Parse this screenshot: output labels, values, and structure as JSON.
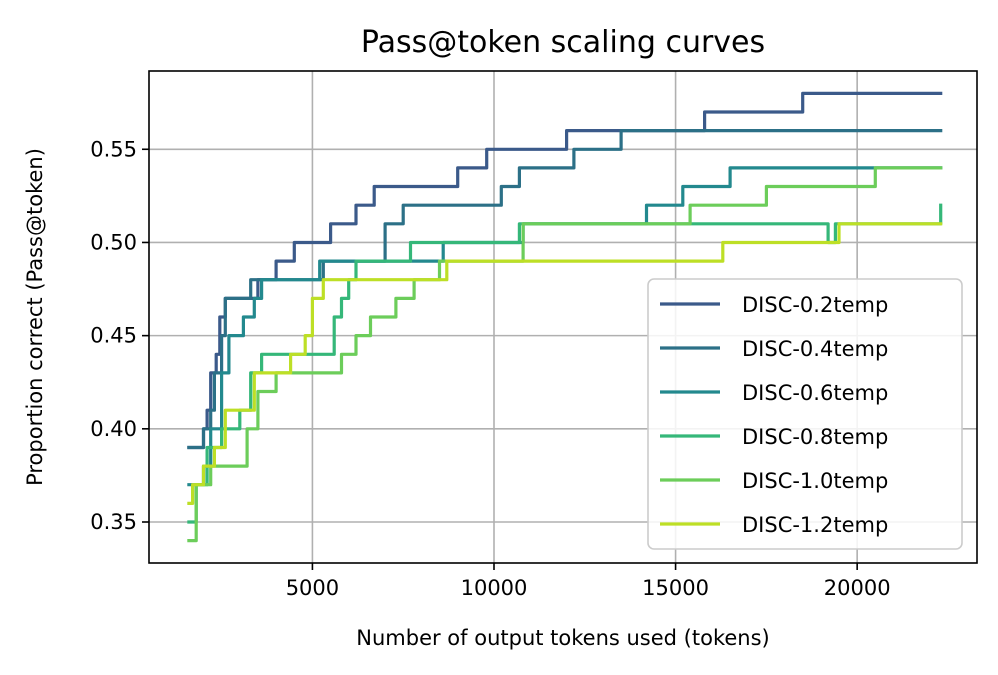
{
  "chart_data": {
    "type": "line",
    "title": "Pass@token scaling curves",
    "xlabel": "Number of output tokens used (tokens)",
    "ylabel": "Proportion correct (Pass@token)",
    "xlim": [
      500,
      23300
    ],
    "ylim": [
      0.328,
      0.592
    ],
    "xticks": [
      5000,
      10000,
      15000,
      20000
    ],
    "xtick_labels": [
      "5000",
      "10000",
      "15000",
      "20000"
    ],
    "yticks": [
      0.35,
      0.4,
      0.45,
      0.5,
      0.55
    ],
    "ytick_labels": [
      "0.35",
      "0.40",
      "0.45",
      "0.50",
      "0.55"
    ],
    "grid": true,
    "legend_position": "bottom-right",
    "step": true,
    "series": [
      {
        "name": "DISC-0.2temp",
        "color": "#3b5a8a",
        "points": [
          [
            1600,
            0.39
          ],
          [
            2000,
            0.4
          ],
          [
            2100,
            0.41
          ],
          [
            2200,
            0.43
          ],
          [
            2350,
            0.44
          ],
          [
            2450,
            0.46
          ],
          [
            2600,
            0.47
          ],
          [
            3500,
            0.48
          ],
          [
            4000,
            0.49
          ],
          [
            4500,
            0.5
          ],
          [
            5200,
            0.5
          ],
          [
            5500,
            0.51
          ],
          [
            6200,
            0.52
          ],
          [
            6500,
            0.52
          ],
          [
            6700,
            0.53
          ],
          [
            8200,
            0.53
          ],
          [
            9000,
            0.54
          ],
          [
            9800,
            0.55
          ],
          [
            11800,
            0.55
          ],
          [
            12000,
            0.56
          ],
          [
            15000,
            0.56
          ],
          [
            15800,
            0.57
          ],
          [
            17500,
            0.57
          ],
          [
            18500,
            0.58
          ],
          [
            22300,
            0.58
          ]
        ]
      },
      {
        "name": "DISC-0.4temp",
        "color": "#2c7087",
        "points": [
          [
            1600,
            0.39
          ],
          [
            1900,
            0.39
          ],
          [
            2000,
            0.4
          ],
          [
            2200,
            0.41
          ],
          [
            2300,
            0.43
          ],
          [
            2500,
            0.45
          ],
          [
            2600,
            0.47
          ],
          [
            3000,
            0.47
          ],
          [
            3300,
            0.48
          ],
          [
            4000,
            0.48
          ],
          [
            4300,
            0.48
          ],
          [
            5000,
            0.48
          ],
          [
            5300,
            0.49
          ],
          [
            6800,
            0.49
          ],
          [
            7000,
            0.51
          ],
          [
            7500,
            0.52
          ],
          [
            9800,
            0.52
          ],
          [
            10200,
            0.53
          ],
          [
            10700,
            0.54
          ],
          [
            11800,
            0.54
          ],
          [
            12200,
            0.55
          ],
          [
            13500,
            0.56
          ],
          [
            22300,
            0.56
          ]
        ]
      },
      {
        "name": "DISC-0.6temp",
        "color": "#23898e",
        "points": [
          [
            1600,
            0.37
          ],
          [
            2000,
            0.38
          ],
          [
            2200,
            0.4
          ],
          [
            2500,
            0.43
          ],
          [
            2700,
            0.45
          ],
          [
            3100,
            0.46
          ],
          [
            3400,
            0.47
          ],
          [
            3600,
            0.48
          ],
          [
            4300,
            0.48
          ],
          [
            5000,
            0.48
          ],
          [
            5200,
            0.49
          ],
          [
            7200,
            0.49
          ],
          [
            8600,
            0.5
          ],
          [
            10600,
            0.5
          ],
          [
            10800,
            0.51
          ],
          [
            13500,
            0.51
          ],
          [
            14200,
            0.52
          ],
          [
            15200,
            0.53
          ],
          [
            16000,
            0.53
          ],
          [
            16500,
            0.54
          ],
          [
            20500,
            0.54
          ],
          [
            22300,
            0.54
          ]
        ]
      },
      {
        "name": "DISC-0.8temp",
        "color": "#35b779",
        "points": [
          [
            1600,
            0.35
          ],
          [
            1800,
            0.37
          ],
          [
            2100,
            0.39
          ],
          [
            2500,
            0.4
          ],
          [
            3000,
            0.41
          ],
          [
            3300,
            0.43
          ],
          [
            3600,
            0.44
          ],
          [
            4800,
            0.44
          ],
          [
            5300,
            0.44
          ],
          [
            5600,
            0.46
          ],
          [
            5800,
            0.47
          ],
          [
            6000,
            0.48
          ],
          [
            6200,
            0.49
          ],
          [
            7500,
            0.49
          ],
          [
            7700,
            0.5
          ],
          [
            9800,
            0.5
          ],
          [
            10000,
            0.5
          ],
          [
            10700,
            0.51
          ],
          [
            11800,
            0.51
          ],
          [
            16500,
            0.51
          ],
          [
            19000,
            0.51
          ],
          [
            19200,
            0.5
          ],
          [
            19400,
            0.51
          ],
          [
            20500,
            0.51
          ],
          [
            22300,
            0.52
          ]
        ]
      },
      {
        "name": "DISC-1.0temp",
        "color": "#6ccd5a",
        "points": [
          [
            1600,
            0.34
          ],
          [
            1800,
            0.37
          ],
          [
            2200,
            0.38
          ],
          [
            3000,
            0.38
          ],
          [
            3200,
            0.4
          ],
          [
            3500,
            0.42
          ],
          [
            4000,
            0.43
          ],
          [
            5500,
            0.43
          ],
          [
            5800,
            0.44
          ],
          [
            6200,
            0.45
          ],
          [
            6600,
            0.46
          ],
          [
            7300,
            0.47
          ],
          [
            7800,
            0.48
          ],
          [
            8200,
            0.48
          ],
          [
            8500,
            0.49
          ],
          [
            10500,
            0.49
          ],
          [
            10800,
            0.51
          ],
          [
            15200,
            0.51
          ],
          [
            15400,
            0.52
          ],
          [
            16800,
            0.52
          ],
          [
            17500,
            0.53
          ],
          [
            19200,
            0.53
          ],
          [
            20500,
            0.54
          ],
          [
            22300,
            0.54
          ]
        ]
      },
      {
        "name": "DISC-1.2temp",
        "color": "#bddf26",
        "points": [
          [
            1600,
            0.36
          ],
          [
            1700,
            0.37
          ],
          [
            1800,
            0.37
          ],
          [
            2000,
            0.38
          ],
          [
            2300,
            0.39
          ],
          [
            2600,
            0.41
          ],
          [
            3300,
            0.41
          ],
          [
            3400,
            0.43
          ],
          [
            4200,
            0.43
          ],
          [
            4400,
            0.44
          ],
          [
            4800,
            0.45
          ],
          [
            5000,
            0.47
          ],
          [
            5200,
            0.47
          ],
          [
            5300,
            0.48
          ],
          [
            6000,
            0.48
          ],
          [
            8200,
            0.48
          ],
          [
            8700,
            0.49
          ],
          [
            9000,
            0.49
          ],
          [
            16200,
            0.49
          ],
          [
            16300,
            0.5
          ],
          [
            19300,
            0.5
          ],
          [
            19500,
            0.51
          ],
          [
            22300,
            0.51
          ]
        ]
      }
    ]
  }
}
